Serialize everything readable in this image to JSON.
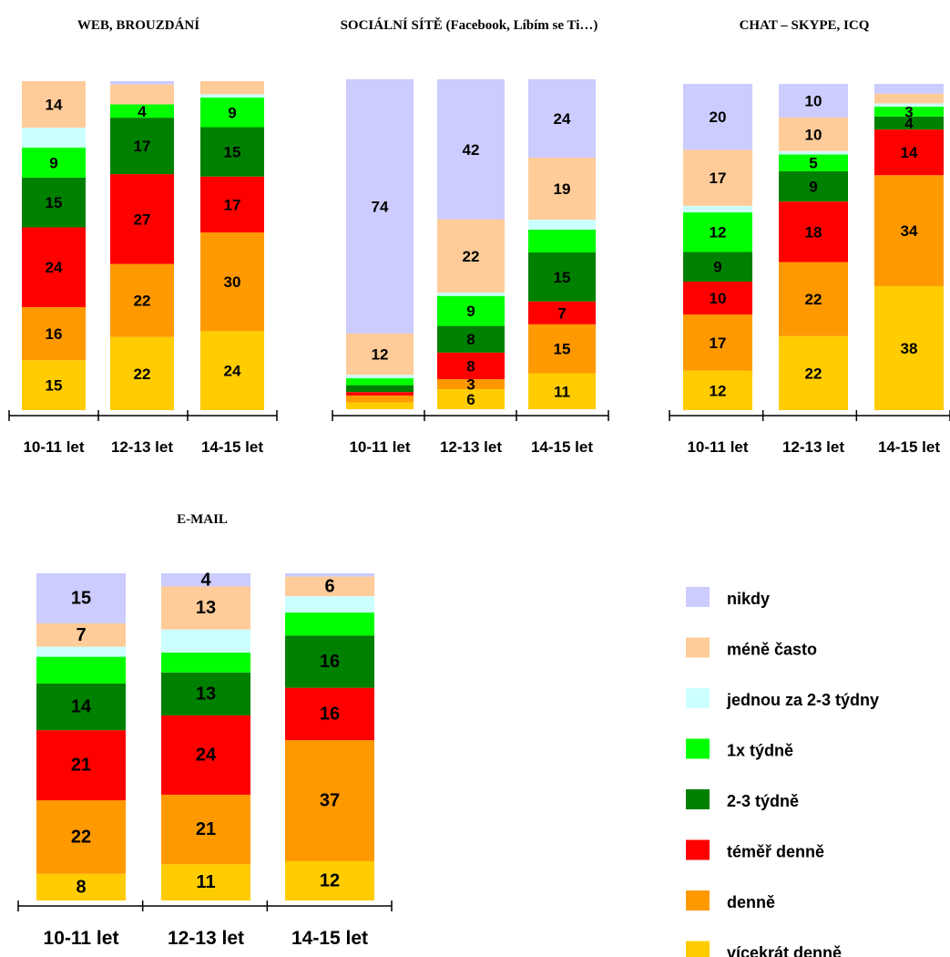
{
  "colors": {
    "nikdy": "#ccccff",
    "mene_casto": "#ffcc99",
    "jednou_2_3_tydny": "#ccffff",
    "1x_tydne": "#00ff00",
    "2_3_tydne": "#008000",
    "temer_denne": "#ff0000",
    "denne": "#ff9900",
    "vicekrat_denne": "#ffcc00"
  },
  "legend": [
    {
      "key": "nikdy",
      "label": "nikdy"
    },
    {
      "key": "mene_casto",
      "label": "méně často"
    },
    {
      "key": "jednou_2_3_tydny",
      "label": "jednou za 2-3 týdny"
    },
    {
      "key": "1x_tydne",
      "label": "1x týdně"
    },
    {
      "key": "2_3_tydne",
      "label": "2-3 týdně"
    },
    {
      "key": "temer_denne",
      "label": "téměř denně"
    },
    {
      "key": "denne",
      "label": "denně"
    },
    {
      "key": "vicekrat_denne",
      "label": "vícekrát denně"
    }
  ],
  "chart_data": [
    {
      "type": "bar",
      "stacked": true,
      "title": "WEB, BROUZDÁNÍ",
      "categories": [
        "10-11 let",
        "12-13 let",
        "14-15 let"
      ],
      "series": [
        {
          "key": "vicekrat_denne",
          "values": [
            15,
            22,
            24
          ]
        },
        {
          "key": "denne",
          "values": [
            16,
            22,
            30
          ]
        },
        {
          "key": "temer_denne",
          "values": [
            24,
            27,
            17
          ]
        },
        {
          "key": "2_3_tydne",
          "values": [
            15,
            17,
            15
          ]
        },
        {
          "key": "1x_tydne",
          "values": [
            9,
            4,
            9
          ]
        },
        {
          "key": "jednou_2_3_tydny",
          "values": [
            6,
            0,
            1
          ]
        },
        {
          "key": "mene_casto",
          "values": [
            14,
            6,
            4
          ]
        },
        {
          "key": "nikdy",
          "values": [
            0,
            1,
            0
          ]
        }
      ],
      "labels": [
        [
          15,
          16,
          24,
          15,
          9,
          null,
          14,
          null
        ],
        [
          22,
          22,
          27,
          17,
          4,
          null,
          null,
          null
        ],
        [
          24,
          30,
          17,
          15,
          9,
          null,
          null,
          null
        ]
      ]
    },
    {
      "type": "bar",
      "stacked": true,
      "title": "SOCIÁLNÍ SÍTĚ (Facebook, Líbím se Ti…)",
      "categories": [
        "10-11 let",
        "12-13 let",
        "14-15 let"
      ],
      "series": [
        {
          "key": "vicekrat_denne",
          "values": [
            2,
            6,
            11
          ]
        },
        {
          "key": "denne",
          "values": [
            2,
            3,
            15
          ]
        },
        {
          "key": "temer_denne",
          "values": [
            1,
            8,
            7
          ]
        },
        {
          "key": "2_3_tydne",
          "values": [
            2,
            8,
            15
          ]
        },
        {
          "key": "1x_tydne",
          "values": [
            2,
            9,
            7
          ]
        },
        {
          "key": "jednou_2_3_tydny",
          "values": [
            1,
            1,
            3
          ]
        },
        {
          "key": "mene_casto",
          "values": [
            12,
            22,
            19
          ]
        },
        {
          "key": "nikdy",
          "values": [
            74,
            42,
            24
          ]
        }
      ],
      "labels": [
        [
          null,
          null,
          null,
          null,
          null,
          null,
          12,
          74
        ],
        [
          6,
          3,
          8,
          8,
          9,
          null,
          22,
          42
        ],
        [
          11,
          15,
          7,
          15,
          null,
          null,
          19,
          24
        ]
      ]
    },
    {
      "type": "bar",
      "stacked": true,
      "title": "CHAT – SKYPE, ICQ",
      "categories": [
        "10-11 let",
        "12-13 let",
        "14-15 let"
      ],
      "series": [
        {
          "key": "vicekrat_denne",
          "values": [
            12,
            22,
            38
          ]
        },
        {
          "key": "denne",
          "values": [
            17,
            22,
            34
          ]
        },
        {
          "key": "temer_denne",
          "values": [
            10,
            18,
            14
          ]
        },
        {
          "key": "2_3_tydne",
          "values": [
            9,
            9,
            4
          ]
        },
        {
          "key": "1x_tydne",
          "values": [
            12,
            5,
            3
          ]
        },
        {
          "key": "jednou_2_3_tydny",
          "values": [
            2,
            1,
            1
          ]
        },
        {
          "key": "mene_casto",
          "values": [
            17,
            10,
            3
          ]
        },
        {
          "key": "nikdy",
          "values": [
            20,
            10,
            3
          ]
        }
      ],
      "labels": [
        [
          12,
          17,
          10,
          9,
          12,
          null,
          17,
          20
        ],
        [
          22,
          22,
          18,
          9,
          5,
          null,
          10,
          10
        ],
        [
          38,
          34,
          14,
          4,
          3,
          null,
          null,
          null
        ]
      ]
    },
    {
      "type": "bar",
      "stacked": true,
      "title": "E-MAIL",
      "categories": [
        "10-11 let",
        "12-13 let",
        "14-15 let"
      ],
      "series": [
        {
          "key": "vicekrat_denne",
          "values": [
            8,
            11,
            12
          ]
        },
        {
          "key": "denne",
          "values": [
            22,
            21,
            37
          ]
        },
        {
          "key": "temer_denne",
          "values": [
            21,
            24,
            16
          ]
        },
        {
          "key": "2_3_tydne",
          "values": [
            14,
            13,
            16
          ]
        },
        {
          "key": "1x_tydne",
          "values": [
            8,
            6,
            7
          ]
        },
        {
          "key": "jednou_2_3_tydny",
          "values": [
            3,
            7,
            5
          ]
        },
        {
          "key": "mene_casto",
          "values": [
            7,
            13,
            6
          ]
        },
        {
          "key": "nikdy",
          "values": [
            15,
            4,
            1
          ]
        }
      ],
      "labels": [
        [
          8,
          22,
          21,
          14,
          null,
          null,
          7,
          15
        ],
        [
          11,
          21,
          24,
          13,
          null,
          null,
          13,
          4
        ],
        [
          12,
          37,
          16,
          16,
          null,
          null,
          6,
          null
        ]
      ]
    }
  ]
}
